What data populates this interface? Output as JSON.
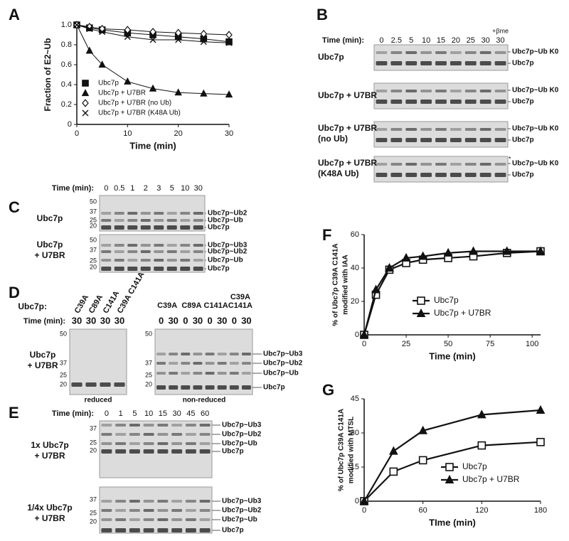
{
  "panel_labels": [
    "A",
    "B",
    "C",
    "D",
    "E",
    "F",
    "G"
  ],
  "chart_data": [
    {
      "type": "line",
      "xlabel": "Time  (min)",
      "ylabel": [
        "Fraction of  E2~Ub"
      ],
      "x": [
        0,
        2.5,
        5,
        10,
        15,
        20,
        25,
        30
      ],
      "xlim": [
        0,
        30
      ],
      "xticks": [
        0,
        10,
        20,
        30
      ],
      "ylim": [
        0,
        1
      ],
      "yticks": [
        0,
        0.2,
        0.4,
        0.6,
        0.8,
        {
          "value": 1,
          "label": "1.0"
        }
      ],
      "legend": "lower left",
      "series": [
        {
          "name": "Ubc7p",
          "color": "#111111",
          "marker": "square-filled",
          "values": [
            1.0,
            0.97,
            0.95,
            0.92,
            0.9,
            0.88,
            0.86,
            0.83
          ]
        },
        {
          "name": "Ubc7p + U7BR",
          "color": "#111111",
          "marker": "triangle-filled",
          "values": [
            1.0,
            0.74,
            0.6,
            0.43,
            0.36,
            0.32,
            0.31,
            0.3
          ]
        },
        {
          "name": "Ubc7p + U7BR (no Ub)",
          "color": "#111111",
          "marker": "diamond-open",
          "values": [
            1.0,
            0.98,
            0.96,
            0.95,
            0.93,
            0.92,
            0.91,
            0.9
          ]
        },
        {
          "name": "Ubc7p + U7BR (K48A Ub)",
          "color": "#111111",
          "marker": "x",
          "values": [
            1.0,
            0.96,
            0.93,
            0.88,
            0.85,
            0.85,
            0.83,
            0.82
          ]
        }
      ]
    },
    {
      "type": "line",
      "xlabel": "Time (min)",
      "ylabel": [
        "% of Ubc7p C39A  C141A",
        "modified with IAA"
      ],
      "x": [
        0,
        7,
        15,
        25,
        35,
        50,
        65,
        85,
        105
      ],
      "xlim": [
        0,
        105
      ],
      "xticks": [
        0,
        25,
        50,
        75,
        100
      ],
      "ylim": [
        0,
        60
      ],
      "yticks": [
        0,
        20,
        40,
        60
      ],
      "legend": "lower center",
      "series": [
        {
          "name": "Ubc7p",
          "color": "#111111",
          "marker": "square-open",
          "values": [
            0,
            24,
            39,
            43,
            45,
            46,
            47,
            49,
            50
          ]
        },
        {
          "name": "Ubc7p + U7BR",
          "color": "#111111",
          "marker": "triangle-filled",
          "values": [
            0,
            27,
            40,
            46,
            47,
            49,
            50,
            50,
            50
          ]
        }
      ]
    },
    {
      "type": "line",
      "xlabel": "TIme  (min)",
      "ylabel": [
        "% of Ubc7p C39A C141A",
        "modified with MTSL"
      ],
      "x": [
        0,
        30,
        60,
        120,
        180
      ],
      "xlim": [
        0,
        180
      ],
      "xticks": [
        0,
        60,
        120,
        180
      ],
      "ylim": [
        0,
        45
      ],
      "yticks": [
        0,
        15,
        30,
        45
      ],
      "legend": "lower right",
      "series": [
        {
          "name": "Ubc7p",
          "color": "#111111",
          "marker": "square-open",
          "values": [
            0,
            13,
            18,
            24.5,
            26
          ]
        },
        {
          "name": "Ubc7p + U7BR",
          "color": "#111111",
          "marker": "triangle-filled",
          "values": [
            0,
            22,
            31,
            38,
            40
          ]
        }
      ]
    }
  ],
  "gel_b": {
    "time_label": "Time (min):",
    "lanes": [
      "0",
      "2.5",
      "5",
      "10",
      "15",
      "20",
      "25",
      "30",
      "30"
    ],
    "reducing_label": "+βme",
    "asterisk": "*",
    "rows": [
      {
        "label": [
          "Ubc7p"
        ],
        "bands": [
          "Ubc7p~Ub K0",
          "Ubc7p"
        ]
      },
      {
        "label": [
          "Ubc7p + U7BR"
        ],
        "bands": [
          "Ubc7p~Ub K0",
          "Ubc7p"
        ]
      },
      {
        "label": [
          "Ubc7p + U7BR",
          "(no Ub)"
        ],
        "bands": [
          "Ubc7p~Ub K0",
          "Ubc7p"
        ]
      },
      {
        "label": [
          "Ubc7p + U7BR",
          "(K48A Ub)"
        ],
        "bands": [
          "Ubc7p~Ub K0",
          "Ubc7p"
        ]
      }
    ]
  },
  "gel_c": {
    "time_label": "Time (min):",
    "lanes": [
      "0",
      "0.5",
      "1",
      "2",
      "3",
      "5",
      "10",
      "30"
    ],
    "rows": [
      {
        "label": [
          "Ubc7p"
        ],
        "markers": [
          "50",
          "37",
          "25",
          "20"
        ],
        "bands": [
          "Ubc7p~Ub2",
          "Ubc7p~Ub",
          "Ubc7p"
        ]
      },
      {
        "label": [
          "Ubc7p",
          "+ U7BR"
        ],
        "markers": [
          "50",
          "37",
          "25",
          "20"
        ],
        "bands": [
          "Ubc7p~Ub3",
          "Ubc7p~Ub2",
          "Ubc7p~Ub",
          "Ubc7p"
        ]
      }
    ]
  },
  "gel_d": {
    "mutant_label": "Ubc7p:",
    "time_label": "Time (min):",
    "row_label": [
      "Ubc7p",
      "+ U7BR"
    ],
    "left": {
      "mutants": [
        "C39A",
        "C89A",
        "C141A",
        "C39A C141A"
      ],
      "times": [
        "30",
        "30",
        "30",
        "30"
      ],
      "markers": [
        "50",
        "37",
        "25",
        "20"
      ],
      "caption": "reduced"
    },
    "right": {
      "mutants": [
        [
          "C39A"
        ],
        [
          "C89A"
        ],
        [
          "C141A"
        ],
        [
          "C39A",
          "C141A"
        ]
      ],
      "times": [
        "0",
        "30",
        "0",
        "30",
        "0",
        "30",
        "0",
        "30"
      ],
      "markers": [
        "50",
        "37",
        "25",
        "20"
      ],
      "bands": [
        "Ubc7p~Ub3",
        "Ubc7p~Ub2",
        "Ubc7p~Ub",
        "Ubc7p"
      ],
      "caption": "non-reduced"
    }
  },
  "gel_e": {
    "time_label": "Time (min):",
    "lanes": [
      "0",
      "1",
      "5",
      "10",
      "15",
      "30",
      "45",
      "60"
    ],
    "rows": [
      {
        "label": [
          "1x Ubc7p",
          "+ U7BR"
        ],
        "markers": [
          "37",
          "25",
          "20"
        ],
        "bands": [
          "Ubc7p~Ub3",
          "Ubc7p~Ub2",
          "Ubc7p~Ub",
          "Ubc7p"
        ]
      },
      {
        "label": [
          "1/4x Ubc7p",
          "+ U7BR"
        ],
        "markers": [
          "37",
          "25",
          "20"
        ],
        "bands": [
          "Ubc7p~Ub3",
          "Ubc7p~Ub2",
          "Ubc7p~Ub",
          "Ubc7p"
        ]
      }
    ]
  }
}
